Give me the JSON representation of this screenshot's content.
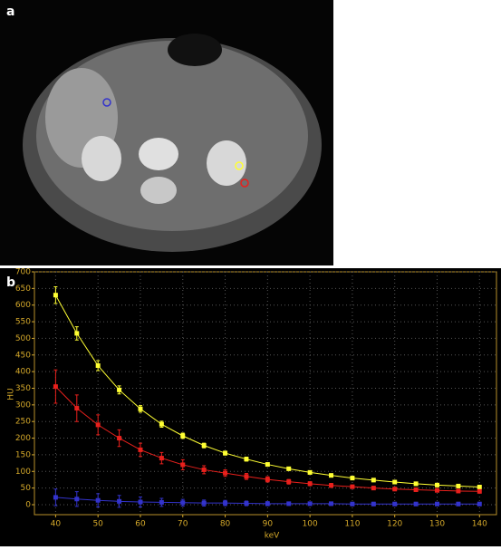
{
  "panel_labels": [
    "a",
    "b"
  ],
  "chart_data": {
    "type": "line",
    "xlabel": "keV",
    "ylabel": "HU",
    "x": [
      40,
      45,
      50,
      55,
      60,
      65,
      70,
      75,
      80,
      85,
      90,
      95,
      100,
      105,
      110,
      115,
      120,
      125,
      130,
      135,
      140
    ],
    "xlim": [
      35,
      144
    ],
    "xticks": [
      40,
      50,
      60,
      70,
      80,
      90,
      100,
      110,
      120,
      130,
      140
    ],
    "ylim": [
      -30,
      700
    ],
    "yticks": [
      0,
      50,
      100,
      150,
      200,
      250,
      300,
      350,
      400,
      450,
      500,
      550,
      600,
      650,
      700
    ],
    "grid": true,
    "series": [
      {
        "color": "#ffff33",
        "values": [
          630,
          515,
          418,
          345,
          288,
          242,
          207,
          178,
          155,
          137,
          121,
          108,
          97,
          88,
          80,
          74,
          68,
          63,
          59,
          56,
          53
        ],
        "errors": [
          25,
          20,
          15,
          12,
          10,
          9,
          8,
          7,
          6,
          6,
          5,
          5,
          5,
          5,
          5,
          5,
          5,
          5,
          5,
          5,
          5
        ]
      },
      {
        "color": "#e8201c",
        "values": [
          355,
          290,
          240,
          200,
          165,
          140,
          120,
          105,
          95,
          85,
          76,
          69,
          63,
          58,
          54,
          50,
          47,
          45,
          43,
          41,
          40
        ],
        "errors": [
          50,
          40,
          30,
          25,
          20,
          17,
          15,
          12,
          10,
          9,
          8,
          7,
          6,
          6,
          5,
          5,
          5,
          5,
          5,
          5,
          5
        ]
      },
      {
        "color": "#3333cc",
        "values": [
          22,
          17,
          13,
          10,
          8,
          7,
          6,
          5,
          5,
          4,
          3,
          3,
          3,
          3,
          2,
          2,
          2,
          2,
          2,
          2,
          2
        ],
        "errors": [
          25,
          22,
          20,
          18,
          15,
          12,
          10,
          9,
          8,
          7,
          6,
          5,
          5,
          5,
          5,
          5,
          5,
          5,
          5,
          5,
          5
        ]
      }
    ]
  }
}
